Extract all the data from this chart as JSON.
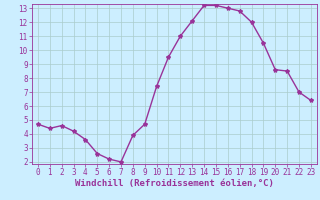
{
  "x": [
    0,
    1,
    2,
    3,
    4,
    5,
    6,
    7,
    8,
    9,
    10,
    11,
    12,
    13,
    14,
    15,
    16,
    17,
    18,
    19,
    20,
    21,
    22,
    23
  ],
  "y": [
    4.7,
    4.4,
    4.6,
    4.2,
    3.6,
    2.6,
    2.2,
    2.0,
    3.9,
    4.7,
    7.4,
    9.5,
    11.0,
    12.1,
    13.2,
    13.2,
    13.0,
    12.8,
    12.0,
    10.5,
    8.6,
    8.5,
    7.0,
    6.4
  ],
  "line_color": "#993399",
  "marker": "*",
  "marker_size": 3,
  "line_width": 1.0,
  "bg_color": "#cceeff",
  "grid_color": "#aacccc",
  "xlabel": "Windchill (Refroidissement éolien,°C)",
  "xlabel_color": "#993399",
  "xlabel_fontsize": 6.5,
  "tick_color": "#993399",
  "tick_fontsize": 5.5,
  "ylim": [
    2,
    13
  ],
  "xlim": [
    -0.5,
    23.5
  ],
  "yticks": [
    2,
    3,
    4,
    5,
    6,
    7,
    8,
    9,
    10,
    11,
    12,
    13
  ],
  "xticks": [
    0,
    1,
    2,
    3,
    4,
    5,
    6,
    7,
    8,
    9,
    10,
    11,
    12,
    13,
    14,
    15,
    16,
    17,
    18,
    19,
    20,
    21,
    22,
    23
  ]
}
